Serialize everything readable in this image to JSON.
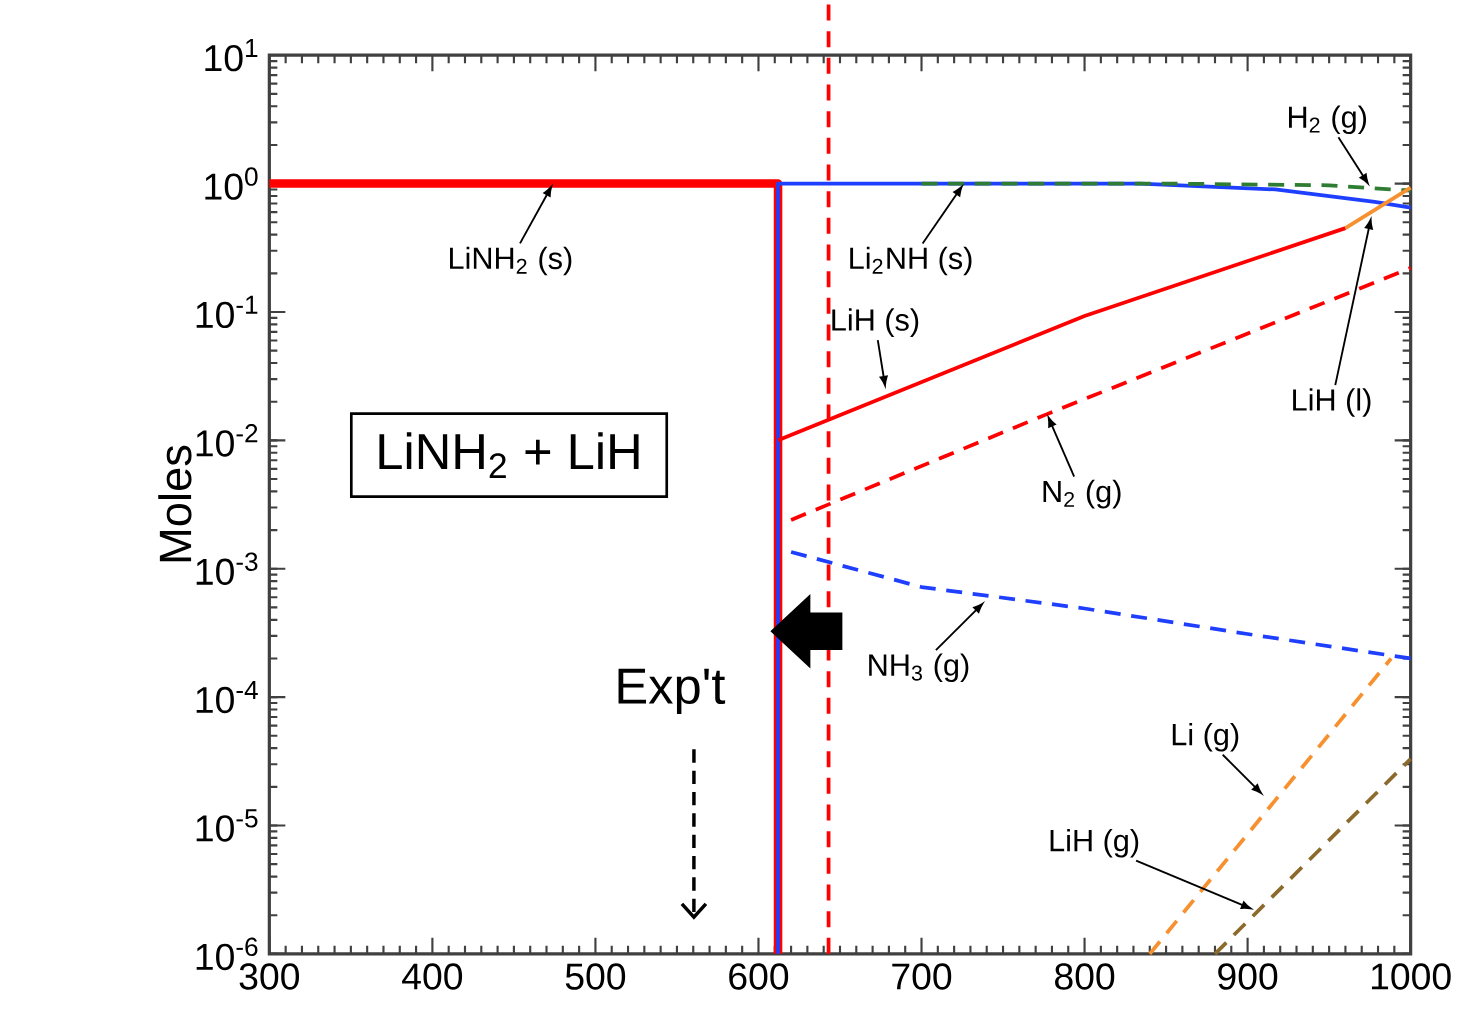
{
  "chart_data": {
    "type": "line",
    "ylabel": "Moles",
    "log": "y",
    "xlim": [
      300,
      1000
    ],
    "xticks": [
      300,
      400,
      500,
      600,
      700,
      800,
      900,
      1000
    ],
    "ylim": [
      1e-06,
      10
    ],
    "yticks": [
      {
        "value": 1e-06,
        "label": "10$^{-6}$"
      },
      {
        "value": 1e-05,
        "label": "10$^{-5}$"
      },
      {
        "value": 0.0001,
        "label": "10$^{-4}$"
      },
      {
        "value": 0.001,
        "label": "10$^{-3}$"
      },
      {
        "value": 0.01,
        "label": "10$^{-2}$"
      },
      {
        "value": 0.1,
        "label": "10$^{-1}$"
      },
      {
        "value": 1,
        "label": "10$^{0}$"
      },
      {
        "value": 10,
        "label": "10$^{1}$"
      }
    ],
    "series": [
      {
        "color": "#ff0000",
        "line_style": "solid",
        "x": [
          300,
          612,
          612
        ],
        "values": [
          1,
          1,
          1e-06
        ]
      },
      {
        "color": "#1f3fff",
        "line_style": "solid",
        "x": [
          612,
          612,
          700,
          834,
          917,
          978,
          1000
        ],
        "values": [
          1e-06,
          1,
          1,
          1,
          0.9,
          0.72,
          0.65
        ]
      },
      {
        "color": "#2e7d32",
        "line_style": "dashed",
        "x": [
          700,
          850,
          950,
          1000
        ],
        "values": [
          1,
          1,
          0.97,
          0.88
        ]
      },
      {
        "color": "#ff0000",
        "line_style": "solid",
        "x": [
          612,
          800,
          960
        ],
        "values": [
          0.01,
          0.093,
          0.45
        ]
      },
      {
        "color": "#f7902f",
        "line_style": "solid",
        "x": [
          960,
          1000
        ],
        "values": [
          0.45,
          0.93
        ]
      },
      {
        "color": "#ff0000",
        "line_style": "dashed",
        "x": [
          620,
          777,
          1000
        ],
        "values": [
          0.0024,
          0.016,
          0.22
        ]
      },
      {
        "color": "#1f3fff",
        "line_style": "dashed",
        "x": [
          620,
          700,
          800,
          900,
          1000
        ],
        "values": [
          0.00135,
          0.00072,
          0.00049,
          0.00031,
          0.0002
        ]
      },
      {
        "color": "#f7902f",
        "line_style": "dashed",
        "x": [
          840,
          988
        ],
        "values": [
          1e-06,
          0.0002
        ]
      },
      {
        "color": "#8c6a2c",
        "line_style": "dashed",
        "x": [
          880,
          1000
        ],
        "values": [
          1e-06,
          3.3e-05
        ]
      }
    ],
    "ref_lines": [
      {
        "axis": "x",
        "value": 643,
        "color": "#ff0000",
        "line_style": "dashed"
      }
    ],
    "annotations": [
      {
        "text": "LiNH$_{2}$ (s)",
        "x": 474,
        "y": 1
      },
      {
        "text": "Li$_{2}$NH (s)",
        "x": 726,
        "y": 1
      },
      {
        "text": "LiH (s)",
        "x": 678,
        "y": 0.025
      },
      {
        "text": "N$_{2}$ (g)",
        "x": 777,
        "y": 0.016
      },
      {
        "text": "H$_{2}$ (g)",
        "x": 975,
        "y": 0.95
      },
      {
        "text": "LiH (l)",
        "x": 976,
        "y": 0.56
      },
      {
        "text": "NH$_{3}$ (g)",
        "x": 739,
        "y": 0.00056
      },
      {
        "text": "Li (g)",
        "x": 910,
        "y": 1.7e-05
      },
      {
        "text": "LiH (g)",
        "x": 904,
        "y": 2.2e-06
      },
      "Exp't",
      "LiNH$_{2}$ + LiH"
    ]
  }
}
